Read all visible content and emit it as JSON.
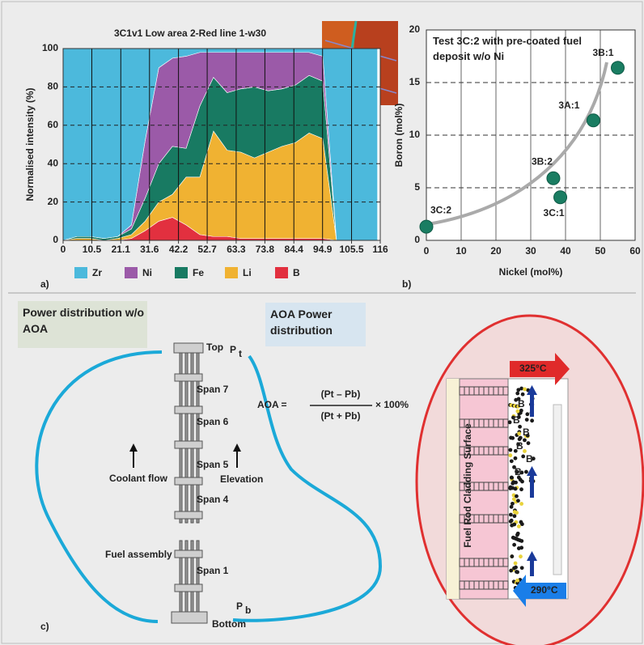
{
  "chart_data": [
    {
      "type": "area",
      "title": "3C1v1 Low area 2-Red line 1-w30",
      "y_label": "Normalised intensity (%)",
      "panel_label": "a)",
      "x": [
        0,
        5,
        10,
        15,
        20,
        25,
        30,
        35,
        40,
        45,
        50,
        55,
        60,
        65,
        70,
        75,
        80,
        85,
        90,
        95,
        100,
        105,
        110,
        115
      ],
      "series": [
        {
          "name": "Zr",
          "color": "#4cb9dc",
          "values": [
            100,
            98,
            98,
            99,
            98,
            92,
            48,
            10,
            5,
            4,
            2,
            2,
            2,
            2,
            2,
            2,
            2,
            2,
            2,
            4,
            100,
            100,
            100,
            100
          ]
        },
        {
          "name": "Ni",
          "color": "#9b5aa8",
          "values": [
            0,
            0,
            0,
            0,
            0,
            2,
            30,
            50,
            46,
            48,
            28,
            13,
            21,
            19,
            18,
            20,
            19,
            17,
            12,
            13,
            0,
            0,
            0,
            0
          ]
        },
        {
          "name": "Fe",
          "color": "#187a62",
          "values": [
            0,
            1,
            1,
            1,
            1,
            3,
            12,
            20,
            25,
            15,
            37,
            28,
            30,
            33,
            37,
            32,
            30,
            30,
            30,
            30,
            0,
            0,
            0,
            0
          ]
        },
        {
          "name": "Li",
          "color": "#f0b232",
          "values": [
            0,
            1,
            1,
            0,
            1,
            2,
            5,
            10,
            12,
            25,
            30,
            55,
            45,
            45,
            42,
            45,
            48,
            50,
            55,
            52,
            0,
            0,
            0,
            0
          ]
        },
        {
          "name": "B",
          "color": "#e2303f",
          "values": [
            0,
            0,
            0,
            0,
            0,
            1,
            5,
            10,
            12,
            8,
            3,
            2,
            2,
            1,
            1,
            1,
            1,
            1,
            1,
            1,
            0,
            0,
            0,
            0
          ]
        }
      ],
      "xlim": [
        0,
        116
      ],
      "xticks": [
        0,
        10.5,
        21.1,
        31.6,
        42.2,
        52.7,
        63.3,
        73.8,
        84.4,
        94.9,
        105.5,
        116
      ],
      "ylim": [
        0,
        100
      ],
      "yticks": [
        0,
        20,
        40,
        60,
        80,
        100
      ],
      "grid": true
    },
    {
      "type": "scatter",
      "title": "Test 3C:2 with pre-coated fuel deposit w/o Ni",
      "x_label": "Nickel (mol%)",
      "y_label": "Boron (mol%)",
      "panel_label": "b)",
      "labels": [
        "3C:2",
        "3B:2",
        "3C:1",
        "3A:1",
        "3B:1"
      ],
      "x": [
        0,
        36.5,
        38.5,
        48,
        55
      ],
      "values": [
        1.3,
        5.9,
        4.1,
        11.4,
        16.4
      ],
      "color": "#1a7d62",
      "xlim": [
        0,
        60
      ],
      "xticks": [
        0,
        10,
        20,
        30,
        40,
        50,
        60
      ],
      "ylim": [
        0,
        20
      ],
      "yticks": [
        0,
        5,
        10,
        15,
        20
      ],
      "grid": true
    }
  ],
  "diagram": {
    "panel_label": "c)",
    "box_left": "Power distribution w/o AOA",
    "box_right": "AOA Power distribution",
    "assembly": {
      "top": "Top",
      "span7": "Span 7",
      "span6": "Span 6",
      "span5": "Span 5",
      "span4": "Span 4",
      "span1": "Span 1",
      "bottom": "Bottom",
      "fuel_assembly": "Fuel assembly",
      "coolant_flow": "Coolant flow",
      "elevation": "Elevation"
    },
    "p_symbol": "P",
    "p_top_sub": "t",
    "p_bottom_sub": "b",
    "formula": {
      "lhs": "AOA =",
      "numerator": "(Pt – Pb)",
      "denominator": "(Pt + Pb)",
      "factor": "× 100%"
    },
    "cladding": {
      "label": "Fuel Rod Cladding Surface",
      "t_out": "325°C",
      "t_in": "290°C",
      "boron": "B"
    }
  }
}
